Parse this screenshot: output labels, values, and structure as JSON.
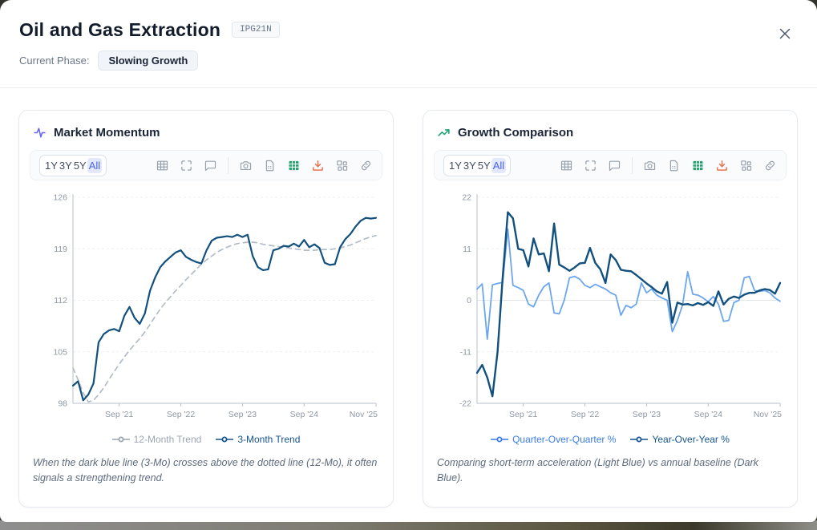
{
  "header": {
    "title": "Oil and Gas Extraction",
    "code_badge": "IPG21N",
    "phase_label": "Current Phase:",
    "phase_value": "Slowing Growth"
  },
  "toolbar": {
    "ranges": [
      "1Y",
      "3Y",
      "5Y",
      "All"
    ],
    "active_range": "All",
    "icons": [
      "table-icon",
      "fullscreen-icon",
      "comment-icon",
      "camera-icon",
      "file-icon",
      "data-table-icon",
      "download-icon",
      "layout-icon",
      "link-icon"
    ]
  },
  "colors": {
    "accent_indigo": "#6466f1",
    "accent_green": "#17a673",
    "toolbar_green": "#27a46f",
    "toolbar_orange": "#e9734f",
    "range_active_bg": "#e3e8fd",
    "range_active_text": "#4a63e4",
    "dark_line": "#12507e",
    "light_line": "#6ba6ee",
    "dashed_line": "#b4bcc8"
  },
  "cards": [
    {
      "title": "Market Momentum",
      "icon": "activity-icon",
      "legend": [
        {
          "label": "12-Month Trend",
          "color": "#9aa5b1"
        },
        {
          "label": "3-Month Trend",
          "color": "#14538c"
        }
      ],
      "caption": "When the dark blue line (3-Mo) crosses above the dotted line (12-Mo), it often signals a strengthening trend."
    },
    {
      "title": "Growth Comparison",
      "icon": "trending-up-icon",
      "legend": [
        {
          "label": "Quarter-Over-Quarter %",
          "color": "#3b7ce2"
        },
        {
          "label": "Year-Over-Year %",
          "color": "#14538c"
        }
      ],
      "caption": "Comparing short-term acceleration (Light Blue) vs annual baseline (Dark Blue)."
    }
  ],
  "chart_data": [
    {
      "type": "line",
      "title": "Market Momentum",
      "x_unit": "month",
      "x_start": "Dec 2020",
      "x_end": "Nov 2025",
      "xtick_labels": [
        "Sep '21",
        "Sep '22",
        "Sep '23",
        "Sep '24",
        "Nov '25"
      ],
      "xtick_indices": [
        9,
        21,
        33,
        45,
        59
      ],
      "ylim": [
        98,
        126
      ],
      "yticks": [
        98,
        105,
        112,
        119,
        126
      ],
      "grid": "horizontal-dashed",
      "legend_position": "bottom",
      "series": [
        {
          "name": "12-Month Trend",
          "style": "dashed",
          "color": "#b4bcc8",
          "line_width": 1.7,
          "values": [
            102.8,
            101.2,
            99.4,
            98.2,
            98.4,
            99.2,
            100.1,
            101.2,
            102.3,
            103.3,
            104.3,
            105.2,
            106.0,
            106.8,
            107.7,
            108.7,
            109.8,
            110.8,
            111.7,
            112.5,
            113.3,
            114.0,
            114.8,
            115.5,
            116.2,
            116.9,
            117.5,
            118.0,
            118.5,
            118.9,
            119.2,
            119.5,
            119.7,
            119.8,
            119.9,
            119.9,
            119.8,
            119.6,
            119.5,
            119.4,
            119.3,
            119.2,
            119.1,
            119.0,
            118.9,
            118.8,
            118.8,
            118.8,
            118.9,
            118.9,
            118.9,
            119.0,
            119.1,
            119.3,
            119.5,
            119.8,
            120.1,
            120.4,
            120.6,
            120.8
          ]
        },
        {
          "name": "3-Month Trend",
          "style": "solid",
          "color": "#12507e",
          "line_width": 2.2,
          "values": [
            100.4,
            101.0,
            98.4,
            99.2,
            100.7,
            106.3,
            107.4,
            107.9,
            108.1,
            107.8,
            109.9,
            111.1,
            109.6,
            108.8,
            110.2,
            113.3,
            115.1,
            116.5,
            117.3,
            117.9,
            118.5,
            118.8,
            117.9,
            117.5,
            117.2,
            117.0,
            118.8,
            120.1,
            120.5,
            120.6,
            120.7,
            120.6,
            120.9,
            120.6,
            120.9,
            118.0,
            116.5,
            116.1,
            116.2,
            118.8,
            119.0,
            119.4,
            119.3,
            119.7,
            119.3,
            120.2,
            119.2,
            119.6,
            119.1,
            117.1,
            116.8,
            116.9,
            119.2,
            120.3,
            121.0,
            122.0,
            122.8,
            123.2,
            123.1,
            123.2
          ]
        }
      ]
    },
    {
      "type": "line",
      "title": "Growth Comparison",
      "x_unit": "month",
      "x_start": "Dec 2020",
      "x_end": "Nov 2025",
      "xtick_labels": [
        "Sep '21",
        "Sep '22",
        "Sep '23",
        "Sep '24",
        "Nov '25"
      ],
      "xtick_indices": [
        9,
        21,
        33,
        45,
        59
      ],
      "ylim": [
        -22,
        22
      ],
      "yticks": [
        -22,
        -11,
        0,
        11,
        22
      ],
      "grid": "horizontal-dashed",
      "legend_position": "bottom",
      "series": [
        {
          "name": "Quarter-Over-Quarter %",
          "style": "solid",
          "color": "#6ba6ee",
          "line_width": 1.8,
          "values": [
            2.4,
            3.5,
            -8.3,
            3.3,
            3.6,
            3.8,
            15.2,
            3.2,
            2.7,
            2.1,
            -0.8,
            -1.4,
            1.1,
            2.9,
            3.7,
            -2.7,
            -2.9,
            0.1,
            4.8,
            5.1,
            4.5,
            3.2,
            2.7,
            3.4,
            2.9,
            2.4,
            1.6,
            1.1,
            -3.2,
            -1.1,
            -1.6,
            -0.8,
            3.7,
            1.6,
            2.4,
            1.1,
            0.5,
            0.0,
            -6.7,
            -4.3,
            -1.0,
            6.1,
            1.3,
            1.1,
            0.5,
            -0.3,
            0.8,
            -0.8,
            -4.5,
            -4.3,
            -0.5,
            0.0,
            4.8,
            5.1,
            2.1,
            1.9,
            2.1,
            1.6,
            0.5,
            -0.2
          ]
        },
        {
          "name": "Year-Over-Year %",
          "style": "solid",
          "color": "#12507e",
          "line_width": 2.4,
          "values": [
            -15.5,
            -13.8,
            -16.5,
            -20.5,
            -11.0,
            5.0,
            18.8,
            17.5,
            11.0,
            10.7,
            7.2,
            13.2,
            9.8,
            10.0,
            6.2,
            16.4,
            7.6,
            7.0,
            6.3,
            7.0,
            7.9,
            8.0,
            11.2,
            8.0,
            6.6,
            3.7,
            9.8,
            8.6,
            6.5,
            6.3,
            6.2,
            5.4,
            4.5,
            3.6,
            2.8,
            1.9,
            1.4,
            3.9,
            -4.8,
            -0.5,
            -0.9,
            -0.8,
            -1.1,
            -0.6,
            -1.0,
            -0.4,
            -1.2,
            1.9,
            -0.9,
            0.3,
            0.8,
            0.5,
            1.2,
            1.6,
            1.6,
            2.1,
            2.4,
            2.2,
            1.4,
            3.7
          ]
        }
      ]
    }
  ]
}
